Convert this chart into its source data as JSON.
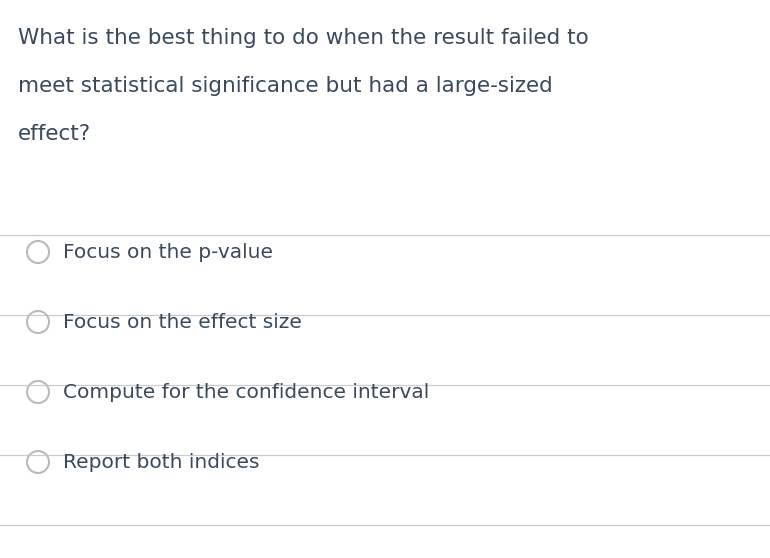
{
  "question_lines": [
    "What is the best thing to do when the result failed to",
    "meet statistical significance but had a large-sized",
    "effect?"
  ],
  "options": [
    "Focus on the p-value",
    "Focus on the effect size",
    "Compute for the confidence interval",
    "Report both indices"
  ],
  "background_color": "#ffffff",
  "text_color": "#3a4a5c",
  "line_color": "#cccccc",
  "question_fontsize": 15.5,
  "option_fontsize": 14.5,
  "circle_color": "#bbbbbb",
  "fig_width": 7.7,
  "fig_height": 5.58,
  "dpi": 100
}
